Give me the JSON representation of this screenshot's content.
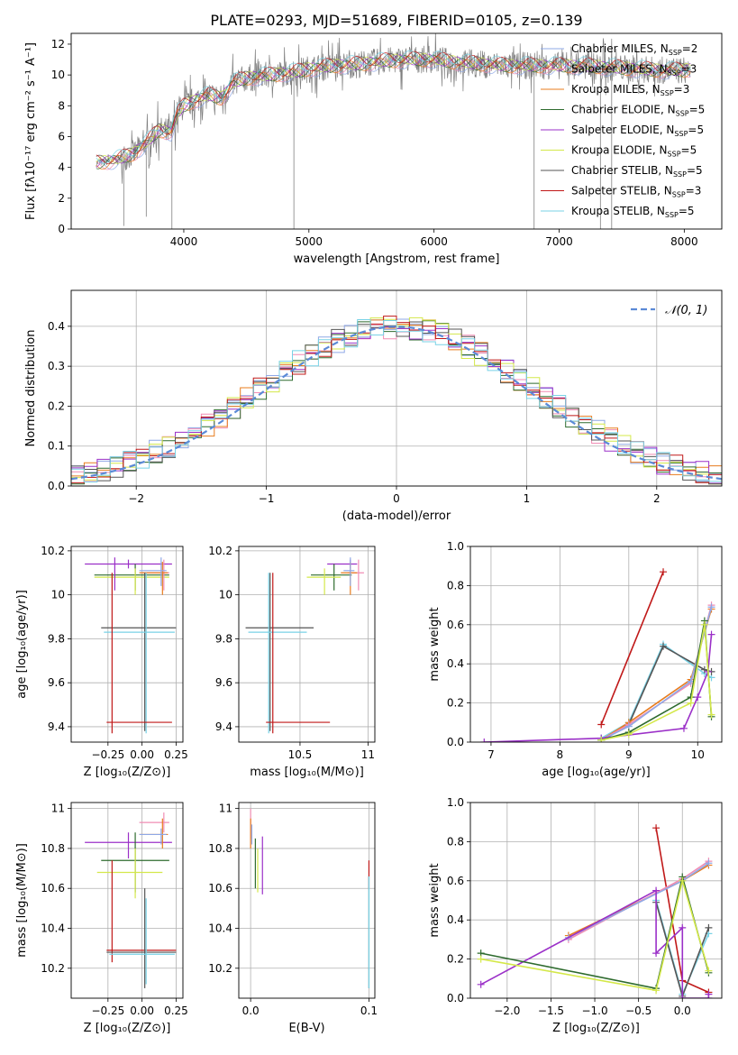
{
  "figure": {
    "title": "PLATE=0293, MJD=51689, FIBERID=0105, z=0.139"
  },
  "colors": {
    "Chabrier MILES": "#8fa8e6",
    "Salpeter MILES": "#f08cb4",
    "Kroupa MILES": "#e87c1e",
    "Chabrier ELODIE": "#2e6b2e",
    "Salpeter ELODIE": "#9b30c8",
    "Kroupa ELODIE": "#d4e84a",
    "Chabrier STELIB": "#555555",
    "Salpeter STELIB": "#c01818",
    "Kroupa STELIB": "#78d2e6",
    "gaussian": "#5b8ad6",
    "data": "#808080",
    "grid": "#b0b0b0"
  },
  "chart_data": [
    {
      "id": "spectrum",
      "type": "line",
      "xlabel": "wavelength [Angstrom, rest frame]",
      "ylabel": "Flux [fλ10⁻¹⁷ erg cm⁻² s⁻¹ A⁻¹]",
      "xlim": [
        3100,
        8300
      ],
      "ylim": [
        0,
        12.7
      ],
      "xticks": [
        4000,
        5000,
        6000,
        7000,
        8000
      ],
      "yticks": [
        0,
        2,
        4,
        6,
        8,
        10,
        12
      ],
      "grid": false,
      "legend_loc": "upper right",
      "legend": [
        {
          "label": "Chabrier MILES, N",
          "sub": "SSP",
          "tail": "=2"
        },
        {
          "label": "Salpeter MILES, N",
          "sub": "SSP",
          "tail": "=3"
        },
        {
          "label": "Kroupa MILES, N",
          "sub": "SSP",
          "tail": "=3"
        },
        {
          "label": "Chabrier ELODIE, N",
          "sub": "SSP",
          "tail": "=5"
        },
        {
          "label": "Salpeter ELODIE, N",
          "sub": "SSP",
          "tail": "=5"
        },
        {
          "label": "Kroupa ELODIE, N",
          "sub": "SSP",
          "tail": "=5"
        },
        {
          "label": "Chabrier STELIB, N",
          "sub": "SSP",
          "tail": "=5"
        },
        {
          "label": "Salpeter STELIB, N",
          "sub": "SSP",
          "tail": "=3"
        },
        {
          "label": "Kroupa STELIB, N",
          "sub": "SSP",
          "tail": "=5"
        }
      ],
      "continuum": {
        "x": [
          3300,
          3400,
          3500,
          3600,
          3700,
          3800,
          3900,
          3950,
          4000,
          4100,
          4200,
          4300,
          4400,
          4500,
          4700,
          4900,
          5000,
          5200,
          5400,
          5600,
          5800,
          6000,
          6200,
          6400,
          6600,
          6800,
          7000,
          7200,
          7400,
          7600,
          7800,
          8000,
          8050
        ],
        "y": [
          4.3,
          4.4,
          4.6,
          4.9,
          5.6,
          6.4,
          6.3,
          7.5,
          8.0,
          8.4,
          8.7,
          8.5,
          9.5,
          9.8,
          10.0,
          10.2,
          10.4,
          10.6,
          10.7,
          10.9,
          11.0,
          11.0,
          10.8,
          10.7,
          10.6,
          10.6,
          10.6,
          10.6,
          10.5,
          10.4,
          10.3,
          10.3,
          10.4
        ]
      },
      "spikes": [
        {
          "x": 3520,
          "y": 0.2
        },
        {
          "x": 3700,
          "y": 0.8
        },
        {
          "x": 3905,
          "y": 0.0
        },
        {
          "x": 4880,
          "y": 0.0
        },
        {
          "x": 6800,
          "y": 0.0
        },
        {
          "x": 7330,
          "y": 0.0
        },
        {
          "x": 7420,
          "y": 0.0
        }
      ]
    },
    {
      "id": "residual_hist",
      "type": "histogram",
      "xlabel": "(data-model)/error",
      "ylabel": "Normed distribution",
      "xlim": [
        -2.5,
        2.5
      ],
      "ylim": [
        0,
        0.49
      ],
      "xticks": [
        -2,
        -1,
        0,
        1,
        2
      ],
      "xticklabels": [
        "−2",
        "−1",
        "0",
        "1",
        "2"
      ],
      "yticks": [
        0.0,
        0.1,
        0.2,
        0.3,
        0.4
      ],
      "grid": true,
      "legend_loc": "upper right",
      "legend": [
        {
          "label": "𝒩(0, 1)"
        }
      ],
      "bin_edges_range": [
        -2.5,
        2.5
      ],
      "bin_count": 50
    },
    {
      "id": "age_vs_Z",
      "type": "scatter",
      "xlabel": "Z [log₁₀(Z/Z⊙)]",
      "ylabel": "age  [log₁₀(age/yr)]",
      "xlim": [
        -0.52,
        0.3
      ],
      "ylim": [
        9.33,
        10.22
      ],
      "xticks": [
        -0.25,
        0.0,
        0.25
      ],
      "xticklabels": [
        "−0.25",
        "0.00",
        "0.25"
      ],
      "yticks": [
        9.4,
        9.6,
        9.8,
        10.0,
        10.2
      ],
      "grid": true
    },
    {
      "id": "age_vs_mass",
      "type": "scatter",
      "xlabel": "mass [log₁₀(M/M⊙)]",
      "ylabel": "",
      "xlim": [
        10.05,
        11.05
      ],
      "ylim": [
        9.33,
        10.22
      ],
      "xticks": [
        10.5,
        11.0
      ],
      "yticks": [
        9.4,
        9.6,
        9.8,
        10.0,
        10.2
      ],
      "grid": true
    },
    {
      "id": "weight_vs_age",
      "type": "line",
      "xlabel": "age  [log₁₀(age/yr)]",
      "ylabel": "mass weight",
      "xlim": [
        6.7,
        10.35
      ],
      "ylim": [
        0,
        1.0
      ],
      "xticks": [
        7,
        8,
        9,
        10
      ],
      "yticks": [
        0.0,
        0.2,
        0.4,
        0.6,
        0.8,
        1.0
      ],
      "grid": true,
      "series": [
        {
          "key": "Salpeter STELIB",
          "x": [
            8.6,
            9.5
          ],
          "y": [
            0.09,
            0.87
          ]
        },
        {
          "key": "Kroupa STELIB",
          "x": [
            8.6,
            9.0,
            9.5,
            10.1,
            10.2
          ],
          "y": [
            0.02,
            0.1,
            0.5,
            0.35,
            0.33
          ]
        },
        {
          "key": "Chabrier STELIB",
          "x": [
            8.6,
            9.0,
            9.5,
            10.1,
            10.2
          ],
          "y": [
            0.01,
            0.09,
            0.49,
            0.37,
            0.36
          ]
        },
        {
          "key": "Kroupa MILES",
          "x": [
            8.6,
            9.0,
            9.9,
            10.2
          ],
          "y": [
            0.01,
            0.1,
            0.32,
            0.68
          ]
        },
        {
          "key": "Salpeter MILES",
          "x": [
            8.6,
            9.0,
            9.9,
            10.2
          ],
          "y": [
            0.01,
            0.09,
            0.3,
            0.7
          ]
        },
        {
          "key": "Chabrier MILES",
          "x": [
            8.6,
            9.0,
            9.9,
            10.2
          ],
          "y": [
            0.01,
            0.08,
            0.31,
            0.69
          ]
        },
        {
          "key": "Salpeter ELODIE",
          "x": [
            6.9,
            8.6,
            9.8,
            10.0,
            10.15,
            10.2
          ],
          "y": [
            0.0,
            0.02,
            0.07,
            0.23,
            0.36,
            0.55
          ]
        },
        {
          "key": "Chabrier ELODIE",
          "x": [
            8.6,
            9.0,
            9.9,
            10.1,
            10.2
          ],
          "y": [
            0.01,
            0.05,
            0.23,
            0.62,
            0.13
          ]
        },
        {
          "key": "Kroupa ELODIE",
          "x": [
            8.6,
            9.0,
            9.9,
            10.1,
            10.2
          ],
          "y": [
            0.01,
            0.04,
            0.2,
            0.6,
            0.14
          ]
        }
      ]
    },
    {
      "id": "mass_vs_Z",
      "type": "scatter",
      "xlabel": "Z [log₁₀(Z/Z⊙)]",
      "ylabel": "mass [log₁₀(M/M⊙)]",
      "xlim": [
        -0.52,
        0.3
      ],
      "ylim": [
        10.05,
        11.03
      ],
      "xticks": [
        -0.25,
        0.0,
        0.25
      ],
      "xticklabels": [
        "−0.25",
        "0.00",
        "0.25"
      ],
      "yticks": [
        10.2,
        10.4,
        10.6,
        10.8,
        11.0
      ],
      "grid": true
    },
    {
      "id": "mass_vs_ebv",
      "type": "scatter",
      "xlabel": "E(B-V)",
      "ylabel": "",
      "xlim": [
        -0.01,
        0.105
      ],
      "ylim": [
        10.05,
        11.03
      ],
      "xticks": [
        0.0,
        0.1
      ],
      "xticklabels": [
        "0.0",
        "0.1"
      ],
      "yticks": [
        10.2,
        10.4,
        10.6,
        10.8,
        11.0
      ],
      "grid": true
    },
    {
      "id": "weight_vs_Z",
      "type": "line",
      "xlabel": "Z [log₁₀(Z/Z⊙)]",
      "ylabel": "mass weight",
      "xlim": [
        -2.42,
        0.45
      ],
      "ylim": [
        0,
        1.0
      ],
      "xticks": [
        -2.0,
        -1.5,
        -1.0,
        -0.5,
        0.0
      ],
      "xticklabels": [
        "−2.0",
        "−1.5",
        "−1.0",
        "−0.5",
        "0.0"
      ],
      "yticks": [
        0.0,
        0.2,
        0.4,
        0.6,
        0.8,
        1.0
      ],
      "grid": true,
      "series": [
        {
          "key": "Salpeter STELIB",
          "x": [
            -0.3,
            0.0,
            0.3
          ],
          "y": [
            0.87,
            0.09,
            0.03
          ]
        },
        {
          "key": "Kroupa STELIB",
          "x": [
            -0.3,
            0.0,
            0.3
          ],
          "y": [
            0.5,
            0.02,
            0.33
          ]
        },
        {
          "key": "Chabrier STELIB",
          "x": [
            -0.3,
            0.0,
            0.3
          ],
          "y": [
            0.49,
            0.01,
            0.36
          ]
        },
        {
          "key": "Kroupa MILES",
          "x": [
            -1.3,
            0.0,
            0.3
          ],
          "y": [
            0.32,
            0.6,
            0.68
          ]
        },
        {
          "key": "Salpeter MILES",
          "x": [
            -1.3,
            0.0,
            0.3
          ],
          "y": [
            0.3,
            0.61,
            0.7
          ]
        },
        {
          "key": "Chabrier MILES",
          "x": [
            -1.3,
            0.0,
            0.3
          ],
          "y": [
            0.31,
            0.6,
            0.69
          ]
        },
        {
          "key": "Salpeter ELODIE",
          "x": [
            -2.3,
            -0.3,
            -0.3,
            0.0,
            0.0,
            0.3,
            0.3
          ],
          "y": [
            0.07,
            0.55,
            0.23,
            0.36,
            0.0,
            0.0,
            0.02
          ]
        },
        {
          "key": "Chabrier ELODIE",
          "x": [
            -2.3,
            -0.3,
            0.0,
            0.3
          ],
          "y": [
            0.23,
            0.05,
            0.62,
            0.13
          ]
        },
        {
          "key": "Kroupa ELODIE",
          "x": [
            -2.3,
            -0.3,
            0.0,
            0.3
          ],
          "y": [
            0.2,
            0.04,
            0.6,
            0.14
          ]
        }
      ]
    }
  ],
  "errorbars": {
    "age_vs_Z": [
      {
        "key": "Salpeter ELODIE",
        "x": -0.1,
        "y": 10.14,
        "xl": -0.42,
        "xh": 0.22,
        "yl": 10.12,
        "yh": 10.16
      },
      {
        "key": "Chabrier ELODIE",
        "x": -0.05,
        "y": 10.09,
        "xl": -0.35,
        "xh": 0.2,
        "yl": 10.02,
        "yh": 10.14
      },
      {
        "key": "Kroupa ELODIE",
        "x": -0.05,
        "y": 10.08,
        "xl": -0.35,
        "xh": 0.2,
        "yl": 10.0,
        "yh": 10.12
      },
      {
        "key": "Salpeter MILES",
        "x": 0.16,
        "y": 10.1,
        "xl": 0.0,
        "xh": 0.2,
        "yl": 10.02,
        "yh": 10.16
      },
      {
        "key": "Kroupa MILES",
        "x": 0.15,
        "y": 10.1,
        "xl": -0.02,
        "xh": 0.19,
        "yl": 10.0,
        "yh": 10.15
      },
      {
        "key": "Chabrier MILES",
        "x": 0.14,
        "y": 10.11,
        "xl": -0.02,
        "xh": 0.18,
        "yl": 10.04,
        "yh": 10.17
      },
      {
        "key": "Chabrier STELIB",
        "x": 0.02,
        "y": 9.85,
        "xl": -0.3,
        "xh": 0.25,
        "yl": 9.38,
        "yh": 10.1
      },
      {
        "key": "Kroupa STELIB",
        "x": 0.03,
        "y": 9.83,
        "xl": -0.28,
        "xh": 0.24,
        "yl": 9.37,
        "yh": 10.1
      },
      {
        "key": "Salpeter STELIB",
        "x": -0.22,
        "y": 9.42,
        "xl": -0.26,
        "xh": 0.22,
        "yl": 9.37,
        "yh": 10.1
      },
      {
        "key": "Salpeter ELODIE",
        "x": -0.2,
        "y": 10.1,
        "xl": -0.2,
        "xh": -0.2,
        "yl": 10.02,
        "yh": 10.17
      }
    ],
    "age_vs_mass": [
      {
        "key": "Salpeter ELODIE",
        "x": 10.87,
        "y": 10.14,
        "xl": 10.7,
        "xh": 10.92,
        "yl": 10.12,
        "yh": 10.16
      },
      {
        "key": "Chabrier ELODIE",
        "x": 10.75,
        "y": 10.09,
        "xl": 10.58,
        "xh": 10.88,
        "yl": 10.02,
        "yh": 10.14
      },
      {
        "key": "Kroupa ELODIE",
        "x": 10.68,
        "y": 10.08,
        "xl": 10.55,
        "xh": 10.8,
        "yl": 10.0,
        "yh": 10.12
      },
      {
        "key": "Salpeter MILES",
        "x": 10.93,
        "y": 10.1,
        "xl": 10.85,
        "xh": 10.97,
        "yl": 10.02,
        "yh": 10.16
      },
      {
        "key": "Kroupa MILES",
        "x": 10.87,
        "y": 10.1,
        "xl": 10.8,
        "xh": 10.92,
        "yl": 10.0,
        "yh": 10.15
      },
      {
        "key": "Chabrier MILES",
        "x": 10.87,
        "y": 10.11,
        "xl": 10.82,
        "xh": 10.9,
        "yl": 10.04,
        "yh": 10.17
      },
      {
        "key": "Chabrier STELIB",
        "x": 10.28,
        "y": 9.85,
        "xl": 10.1,
        "xh": 10.6,
        "yl": 9.38,
        "yh": 10.1
      },
      {
        "key": "Kroupa STELIB",
        "x": 10.27,
        "y": 9.83,
        "xl": 10.12,
        "xh": 10.55,
        "yl": 9.37,
        "yh": 10.1
      },
      {
        "key": "Salpeter STELIB",
        "x": 10.3,
        "y": 9.42,
        "xl": 10.25,
        "xh": 10.72,
        "yl": 9.37,
        "yh": 10.1
      }
    ],
    "mass_vs_Z": [
      {
        "key": "Salpeter ELODIE",
        "x": -0.1,
        "y": 10.83,
        "xl": -0.42,
        "xh": 0.22,
        "yl": 10.75,
        "yh": 10.88
      },
      {
        "key": "Salpeter MILES",
        "x": 0.16,
        "y": 10.93,
        "xl": -0.02,
        "xh": 0.2,
        "yl": 10.88,
        "yh": 10.98
      },
      {
        "key": "Kroupa MILES",
        "x": 0.15,
        "y": 10.87,
        "xl": -0.02,
        "xh": 0.19,
        "yl": 10.8,
        "yh": 10.95
      },
      {
        "key": "Chabrier MILES",
        "x": 0.14,
        "y": 10.87,
        "xl": -0.02,
        "xh": 0.18,
        "yl": 10.82,
        "yh": 10.9
      },
      {
        "key": "Chabrier ELODIE",
        "x": -0.05,
        "y": 10.74,
        "xl": -0.3,
        "xh": 0.2,
        "yl": 10.58,
        "yh": 10.88
      },
      {
        "key": "Kroupa ELODIE",
        "x": -0.05,
        "y": 10.68,
        "xl": -0.33,
        "xh": 0.15,
        "yl": 10.55,
        "yh": 10.8
      },
      {
        "key": "Salpeter STELIB",
        "x": -0.22,
        "y": 10.29,
        "xl": -0.26,
        "xh": 0.25,
        "yl": 10.23,
        "yh": 10.74
      },
      {
        "key": "Chabrier STELIB",
        "x": 0.02,
        "y": 10.28,
        "xl": -0.26,
        "xh": 0.25,
        "yl": 10.1,
        "yh": 10.6
      },
      {
        "key": "Kroupa STELIB",
        "x": 0.03,
        "y": 10.27,
        "xl": -0.24,
        "xh": 0.24,
        "yl": 10.12,
        "yh": 10.55
      }
    ],
    "mass_vs_ebv": [
      {
        "key": "Salpeter MILES",
        "x": 0.0,
        "y": 10.93,
        "xl": 0.0,
        "xh": 0.0,
        "yl": 10.85,
        "yh": 11.0
      },
      {
        "key": "Kroupa MILES",
        "x": 0.0,
        "y": 10.87,
        "xl": 0.0,
        "xh": 0.0,
        "yl": 10.8,
        "yh": 10.95
      },
      {
        "key": "Chabrier MILES",
        "x": 0.001,
        "y": 10.87,
        "xl": 0.0,
        "xh": 0.0,
        "yl": 10.82,
        "yh": 10.92
      },
      {
        "key": "Kroupa ELODIE",
        "x": 0.006,
        "y": 10.68,
        "xl": 0.0,
        "xh": 0.0,
        "yl": 10.58,
        "yh": 10.8
      },
      {
        "key": "Chabrier ELODIE",
        "x": 0.004,
        "y": 10.74,
        "xl": 0.0,
        "xh": 0.0,
        "yl": 10.6,
        "yh": 10.85
      },
      {
        "key": "Salpeter ELODIE",
        "x": 0.01,
        "y": 10.77,
        "xl": 0.0,
        "xh": 0.0,
        "yl": 10.57,
        "yh": 10.86
      },
      {
        "key": "Salpeter STELIB",
        "x": 0.1,
        "y": 10.66,
        "xl": 0.0,
        "xh": 0.0,
        "yl": 10.6,
        "yh": 10.74
      },
      {
        "key": "Chabrier STELIB",
        "x": 0.1,
        "y": 10.4,
        "xl": 0.0,
        "xh": 0.0,
        "yl": 10.1,
        "yh": 10.66
      },
      {
        "key": "Kroupa STELIB",
        "x": 0.1,
        "y": 10.35,
        "xl": 0.0,
        "xh": 0.0,
        "yl": 10.1,
        "yh": 10.66
      }
    ]
  }
}
